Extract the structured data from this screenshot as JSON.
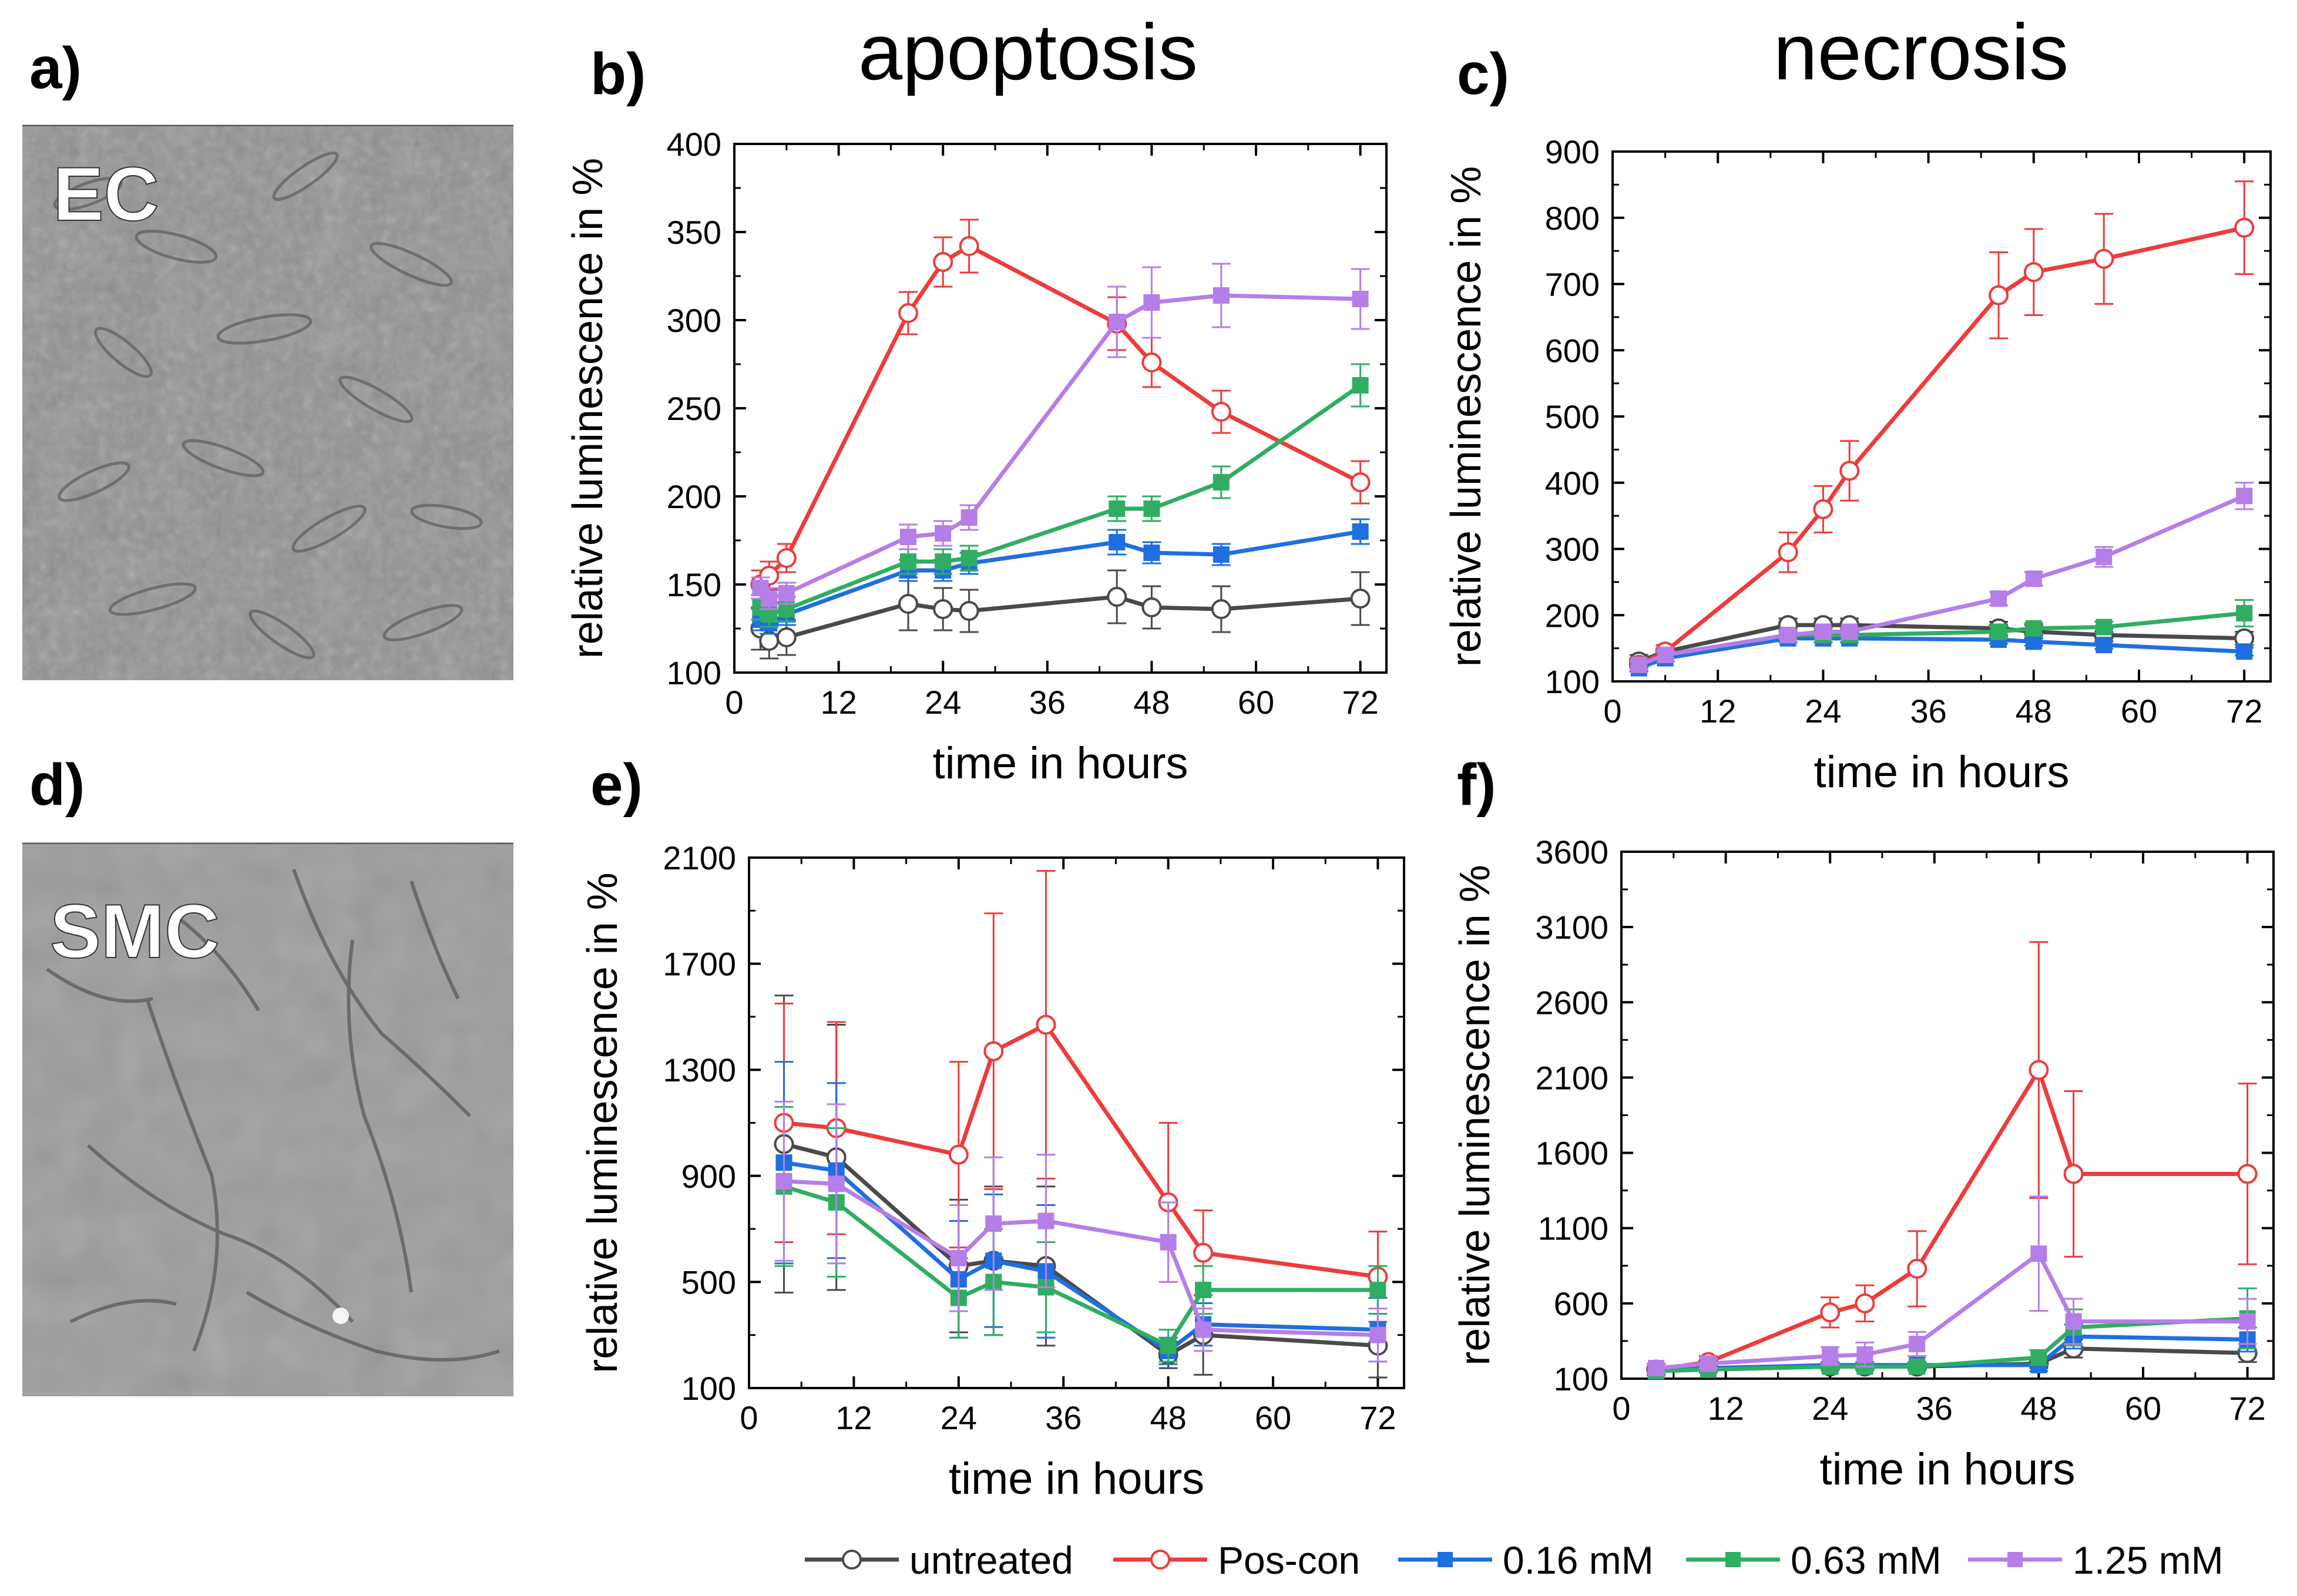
{
  "figure": {
    "image_panels": [
      {
        "letter": "a)",
        "label": "EC"
      },
      {
        "letter": "d)",
        "label": "SMC"
      }
    ],
    "column_titles": [
      "apoptosis",
      "necrosis"
    ]
  },
  "legend": [
    {
      "name": "untreated",
      "color": "#4a4a4a",
      "marker": "open-circle"
    },
    {
      "name": "Pos-con",
      "color": "#ee3b3b",
      "marker": "open-circle"
    },
    {
      "name": "0.16 mM",
      "color": "#1f6fe0",
      "marker": "filled-square"
    },
    {
      "name": "0.63 mM",
      "color": "#2fae62",
      "marker": "filled-square"
    },
    {
      "name": "1.25 mM",
      "color": "#b67ee8",
      "marker": "filled-square"
    }
  ],
  "chart_data": [
    {
      "panel": "b)",
      "type": "line",
      "title": "",
      "xlabel": "time in hours",
      "ylabel": "relative luminescence in %",
      "xlim": [
        0,
        75
      ],
      "ylim": [
        100,
        400
      ],
      "xticks": [
        0,
        12,
        24,
        36,
        48,
        60,
        72
      ],
      "yticks": [
        100,
        150,
        200,
        250,
        300,
        350,
        400
      ],
      "series": [
        {
          "name": "untreated",
          "x": [
            3,
            4,
            6,
            20,
            24,
            27,
            44,
            48,
            56,
            72
          ],
          "y": [
            125,
            118,
            120,
            139,
            136,
            135,
            143,
            137,
            136,
            142
          ],
          "err": [
            12,
            10,
            10,
            15,
            12,
            12,
            15,
            12,
            13,
            15
          ]
        },
        {
          "name": "Pos-con",
          "x": [
            3,
            4,
            6,
            20,
            24,
            27,
            44,
            48,
            56,
            72
          ],
          "y": [
            150,
            155,
            165,
            304,
            333,
            342,
            298,
            276,
            248,
            208
          ],
          "err": [
            8,
            8,
            8,
            12,
            14,
            15,
            15,
            14,
            12,
            12
          ]
        },
        {
          "name": "0.16 mM",
          "x": [
            3,
            4,
            6,
            20,
            24,
            27,
            44,
            48,
            56,
            72
          ],
          "y": [
            130,
            128,
            133,
            158,
            158,
            162,
            174,
            168,
            167,
            180
          ],
          "err": [
            6,
            6,
            6,
            6,
            6,
            6,
            7,
            6,
            6,
            7
          ]
        },
        {
          "name": "0.63 mM",
          "x": [
            3,
            4,
            6,
            20,
            24,
            27,
            44,
            48,
            56,
            72
          ],
          "y": [
            137,
            133,
            136,
            163,
            163,
            165,
            193,
            193,
            208,
            263
          ],
          "err": [
            7,
            7,
            7,
            7,
            7,
            7,
            7,
            7,
            9,
            12
          ]
        },
        {
          "name": "1.25 mM",
          "x": [
            3,
            4,
            6,
            20,
            24,
            27,
            44,
            48,
            56,
            72
          ],
          "y": [
            148,
            142,
            145,
            177,
            179,
            188,
            299,
            310,
            314,
            312
          ],
          "err": [
            6,
            6,
            6,
            7,
            7,
            7,
            20,
            20,
            18,
            17
          ]
        }
      ]
    },
    {
      "panel": "c)",
      "type": "line",
      "title": "",
      "xlabel": "time in hours",
      "ylabel": "relative luminescence in %",
      "xlim": [
        0,
        75
      ],
      "ylim": [
        100,
        900
      ],
      "xticks": [
        0,
        12,
        24,
        36,
        48,
        60,
        72
      ],
      "yticks": [
        100,
        200,
        300,
        400,
        500,
        600,
        700,
        800,
        900
      ],
      "series": [
        {
          "name": "untreated",
          "x": [
            3,
            6,
            20,
            24,
            27,
            44,
            48,
            56,
            72
          ],
          "y": [
            130,
            145,
            185,
            185,
            185,
            180,
            175,
            170,
            165
          ],
          "err": [
            10,
            10,
            10,
            10,
            10,
            10,
            10,
            10,
            10
          ]
        },
        {
          "name": "Pos-con",
          "x": [
            3,
            6,
            20,
            24,
            27,
            44,
            48,
            56,
            72
          ],
          "y": [
            125,
            145,
            295,
            360,
            418,
            683,
            718,
            738,
            785
          ],
          "err": [
            10,
            10,
            30,
            35,
            45,
            65,
            65,
            68,
            70
          ]
        },
        {
          "name": "0.16 mM",
          "x": [
            3,
            6,
            20,
            24,
            27,
            44,
            48,
            56,
            72
          ],
          "y": [
            120,
            135,
            165,
            165,
            165,
            163,
            160,
            155,
            145
          ],
          "err": [
            5,
            5,
            6,
            6,
            6,
            6,
            6,
            6,
            6
          ]
        },
        {
          "name": "0.63 mM",
          "x": [
            3,
            6,
            20,
            24,
            27,
            44,
            48,
            56,
            72
          ],
          "y": [
            125,
            140,
            170,
            170,
            170,
            175,
            180,
            182,
            203
          ],
          "err": [
            6,
            6,
            6,
            6,
            6,
            8,
            8,
            8,
            20
          ]
        },
        {
          "name": "1.25 mM",
          "x": [
            3,
            6,
            20,
            24,
            27,
            44,
            48,
            56,
            72
          ],
          "y": [
            125,
            140,
            170,
            175,
            175,
            225,
            255,
            288,
            380
          ],
          "err": [
            6,
            6,
            6,
            6,
            6,
            10,
            10,
            15,
            20
          ]
        }
      ]
    },
    {
      "panel": "e)",
      "type": "line",
      "title": "",
      "xlabel": "time in hours",
      "ylabel": "relative luminescence in %",
      "xlim": [
        0,
        75
      ],
      "ylim": [
        100,
        2100
      ],
      "xticks": [
        0,
        12,
        24,
        36,
        48,
        60,
        72
      ],
      "yticks": [
        100,
        500,
        900,
        1300,
        1700,
        2100
      ],
      "series": [
        {
          "name": "untreated",
          "x": [
            4,
            10,
            24,
            28,
            34,
            48,
            52,
            72
          ],
          "y": [
            1020,
            970,
            560,
            580,
            560,
            225,
            300,
            260
          ],
          "err": [
            560,
            500,
            250,
            280,
            300,
            50,
            150,
            120
          ]
        },
        {
          "name": "Pos-con",
          "x": [
            4,
            10,
            24,
            28,
            34,
            48,
            52,
            72
          ],
          "y": [
            1100,
            1080,
            980,
            1370,
            1470,
            800,
            610,
            520
          ],
          "err": [
            450,
            400,
            350,
            520,
            580,
            300,
            160,
            170
          ]
        },
        {
          "name": "0.16 mM",
          "x": [
            4,
            10,
            24,
            28,
            34,
            48,
            52,
            72
          ],
          "y": [
            950,
            920,
            510,
            580,
            540,
            240,
            340,
            320
          ],
          "err": [
            380,
            330,
            220,
            250,
            250,
            50,
            80,
            120
          ]
        },
        {
          "name": "0.63 mM",
          "x": [
            4,
            10,
            24,
            28,
            34,
            48,
            52,
            72
          ],
          "y": [
            860,
            800,
            440,
            500,
            480,
            260,
            470,
            470
          ],
          "err": [
            300,
            280,
            150,
            200,
            170,
            60,
            90,
            90
          ]
        },
        {
          "name": "1.25 mM",
          "x": [
            4,
            10,
            24,
            28,
            34,
            48,
            52,
            72
          ],
          "y": [
            880,
            870,
            590,
            720,
            730,
            650,
            320,
            300
          ],
          "err": [
            300,
            300,
            200,
            250,
            250,
            150,
            80,
            100
          ]
        }
      ]
    },
    {
      "panel": "f)",
      "type": "line",
      "title": "",
      "xlabel": "time in hours",
      "ylabel": "relative luminescence in %",
      "xlim": [
        0,
        75
      ],
      "ylim": [
        100,
        3600
      ],
      "xticks": [
        0,
        12,
        24,
        36,
        48,
        60,
        72
      ],
      "yticks": [
        100,
        600,
        1100,
        1600,
        2100,
        2600,
        3100,
        3600
      ],
      "series": [
        {
          "name": "untreated",
          "x": [
            4,
            10,
            24,
            28,
            34,
            48,
            52,
            72
          ],
          "y": [
            160,
            170,
            180,
            180,
            180,
            200,
            300,
            270
          ],
          "err": [
            20,
            20,
            20,
            20,
            20,
            30,
            60,
            60
          ]
        },
        {
          "name": "Pos-con",
          "x": [
            4,
            10,
            24,
            28,
            34,
            48,
            52,
            72
          ],
          "y": [
            160,
            210,
            540,
            600,
            830,
            2150,
            1460,
            1460
          ],
          "err": [
            40,
            40,
            100,
            120,
            250,
            850,
            550,
            600
          ]
        },
        {
          "name": "0.16 mM",
          "x": [
            4,
            10,
            24,
            28,
            34,
            48,
            52,
            72
          ],
          "y": [
            150,
            170,
            190,
            190,
            190,
            190,
            380,
            360
          ],
          "err": [
            20,
            20,
            20,
            20,
            20,
            40,
            80,
            80
          ]
        },
        {
          "name": "0.63 mM",
          "x": [
            4,
            10,
            24,
            28,
            34,
            48,
            52,
            72
          ],
          "y": [
            150,
            160,
            180,
            180,
            180,
            240,
            440,
            500
          ],
          "err": [
            20,
            20,
            20,
            20,
            20,
            50,
            120,
            200
          ]
        },
        {
          "name": "1.25 mM",
          "x": [
            4,
            10,
            24,
            28,
            34,
            48,
            52,
            72
          ],
          "y": [
            170,
            200,
            250,
            260,
            330,
            930,
            480,
            480
          ],
          "err": [
            30,
            30,
            60,
            80,
            80,
            380,
            150,
            150
          ]
        }
      ]
    }
  ]
}
